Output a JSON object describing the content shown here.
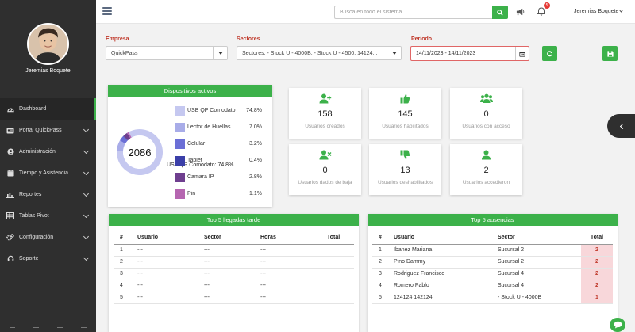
{
  "user": {
    "name": "Jeremias Boquete"
  },
  "sidebar": {
    "items": [
      {
        "label": "Dashboard",
        "icon": "dashboard-icon"
      },
      {
        "label": "Portal QuickPass",
        "icon": "id-card-icon"
      },
      {
        "label": "Administración",
        "icon": "user-circle-icon"
      },
      {
        "label": "Tiempo y Asistencia",
        "icon": "calendar-icon"
      },
      {
        "label": "Reportes",
        "icon": "bar-chart-icon"
      },
      {
        "label": "Tablas Pivot",
        "icon": "table-icon"
      },
      {
        "label": "Configuración",
        "icon": "cogs-icon"
      },
      {
        "label": "Soporte",
        "icon": "headset-icon"
      }
    ]
  },
  "topbar": {
    "search_placeholder": "Buscá en todo el sistema",
    "notifications_count": "5",
    "user_label": "Jeremias Boquete"
  },
  "filters": {
    "empresa_label": "Empresa",
    "empresa_value": "QuickPass",
    "sectores_label": "Sectores",
    "sectores_value": "Sectores, - Stock U - 4000B, - Stock U - 4500, 14124...",
    "periodo_label": "Periodo",
    "periodo_value": "14/11/2023 - 14/11/2023"
  },
  "devices": {
    "title": "Dispositivos activos",
    "total": "2086",
    "tooltip": "USB QP Comodato: 74.8%",
    "items": [
      {
        "name": "USB QP Comodato",
        "pct": "74.8%",
        "value": 74.8,
        "color": "#c5c8f0"
      },
      {
        "name": "Lector de Huellas...",
        "pct": "7.0%",
        "value": 7.0,
        "color": "#a8ace8"
      },
      {
        "name": "Celular",
        "pct": "3.2%",
        "value": 3.2,
        "color": "#6b6fd6"
      },
      {
        "name": "Tablet",
        "pct": "0.4%",
        "value": 0.4,
        "color": "#3b3fa8"
      },
      {
        "name": "Camara IP",
        "pct": "2.8%",
        "value": 2.8,
        "color": "#6f3f8f"
      },
      {
        "name": "Pin",
        "pct": "1.1%",
        "value": 1.1,
        "color": "#b566b0"
      }
    ]
  },
  "stats": [
    {
      "value": "158",
      "label": "Usuarios creados",
      "icon": "user-plus-icon"
    },
    {
      "value": "145",
      "label": "Usuarios habilitados",
      "icon": "thumbs-up-icon"
    },
    {
      "value": "0",
      "label": "Usuarios con acceso",
      "icon": "users-icon"
    },
    {
      "value": "0",
      "label": "Usuarios dados de baja",
      "icon": "user-times-icon"
    },
    {
      "value": "13",
      "label": "Usuarios deshabilitados",
      "icon": "thumbs-down-icon"
    },
    {
      "value": "2",
      "label": "Usuarios accedieron",
      "icon": "user-icon"
    }
  ],
  "late": {
    "title": "Top 5 llegadas tarde",
    "headers": [
      "#",
      "Usuario",
      "Sector",
      "Horas",
      "Total"
    ],
    "rows": [
      [
        "1",
        "---",
        "---",
        "---",
        ""
      ],
      [
        "2",
        "---",
        "---",
        "---",
        ""
      ],
      [
        "3",
        "---",
        "---",
        "---",
        ""
      ],
      [
        "4",
        "---",
        "---",
        "---",
        ""
      ],
      [
        "5",
        "---",
        "---",
        "---",
        ""
      ]
    ]
  },
  "absences": {
    "title": "Top 5 ausencias",
    "headers": [
      "#",
      "Usuario",
      "Sector",
      "Total"
    ],
    "rows": [
      [
        "1",
        "Ibanez Mariana",
        "Sucursal 2",
        "2"
      ],
      [
        "2",
        "Pino Dammy",
        "Sucursal 2",
        "2"
      ],
      [
        "3",
        "Rodriguez Francisco",
        "Sucursal 4",
        "2"
      ],
      [
        "4",
        "Romero Pablo",
        "Sucursal 4",
        "2"
      ],
      [
        "5",
        "124124 142124",
        "- Stock U - 4000B",
        "1"
      ]
    ]
  }
}
